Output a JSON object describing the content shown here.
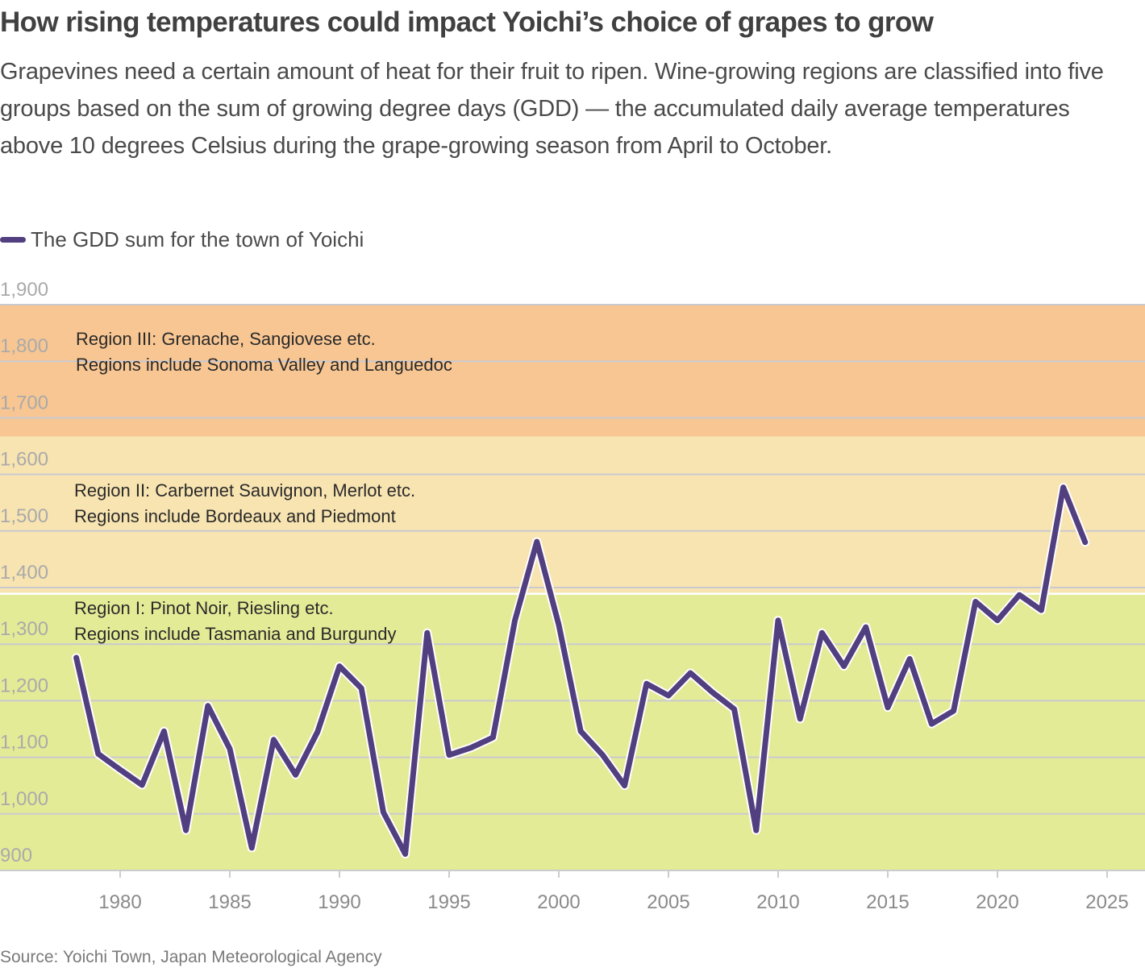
{
  "header": {
    "title": "How rising temperatures could impact Yoichi’s choice of grapes to grow",
    "subtitle": "Grapevines need a certain amount of heat for their fruit to ripen. Wine-growing regions are classified into five groups based on the sum of growing degree days (GDD) — the accumulated daily average temperatures above 10 degrees Celsius during the grape-growing season from April to October."
  },
  "legend": {
    "label": "The GDD sum for the town of Yoichi",
    "color": "#523f80"
  },
  "source": "Source: Yoichi Town, Japan Meteorological Agency",
  "chart_data": {
    "type": "line",
    "title": "How rising temperatures could impact Yoichi’s choice of grapes to grow",
    "xlabel": "",
    "ylabel": "",
    "ylim": [
      900,
      1900
    ],
    "xlim": [
      1975,
      2026
    ],
    "grid": true,
    "legend_position": "top-left",
    "yticks": [
      900,
      1000,
      1100,
      1200,
      1300,
      1400,
      1500,
      1600,
      1700,
      1800,
      1900
    ],
    "ytick_labels": [
      "900",
      "1,000",
      "1,100",
      "1,200",
      "1,300",
      "1,400",
      "1,500",
      "1,600",
      "1,700",
      "1,800",
      "1,900"
    ],
    "xticks": [
      1980,
      1985,
      1990,
      1995,
      2000,
      2005,
      2010,
      2015,
      2020,
      2025
    ],
    "xtick_labels": [
      "1980",
      "1985",
      "1990",
      "1995",
      "2000",
      "2005",
      "2010",
      "2015",
      "2020",
      "2025"
    ],
    "bands": [
      {
        "name": "Region I",
        "from": 900,
        "to": 1389,
        "color": "#e4eb97",
        "line1": "Region I: Pinot Noir, Riesling etc.",
        "line2": "Regions include Tasmania and Burgundy"
      },
      {
        "name": "Region II",
        "from": 1389,
        "to": 1667,
        "color": "#f8e4b1",
        "line1": "Region II: Carbernet Sauvignon, Merlot etc.",
        "line2": "Regions include Bordeaux and Piedmont"
      },
      {
        "name": "Region III",
        "from": 1667,
        "to": 1900,
        "color": "#f8c692",
        "line1": "Region III: Grenache, Sangiovese etc.",
        "line2": "Regions include Sonoma Valley and Languedoc"
      }
    ],
    "series": [
      {
        "name": "The GDD sum for the town of Yoichi",
        "color": "#523f80",
        "x": [
          1978,
          1979,
          1980,
          1981,
          1982,
          1983,
          1984,
          1985,
          1986,
          1987,
          1988,
          1989,
          1990,
          1991,
          1992,
          1993,
          1994,
          1995,
          1996,
          1997,
          1998,
          1999,
          2000,
          2001,
          2002,
          2003,
          2004,
          2005,
          2006,
          2007,
          2008,
          2009,
          2010,
          2011,
          2012,
          2013,
          2014,
          2015,
          2016,
          2017,
          2018,
          2019,
          2020,
          2021,
          2022,
          2023,
          2024
        ],
        "values": [
          1276,
          1106,
          1078,
          1051,
          1146,
          971,
          1191,
          1115,
          940,
          1131,
          1069,
          1145,
          1261,
          1222,
          1003,
          929,
          1320,
          1104,
          1117,
          1135,
          1342,
          1481,
          1334,
          1146,
          1104,
          1050,
          1230,
          1209,
          1249,
          1215,
          1185,
          971,
          1342,
          1168,
          1320,
          1261,
          1330,
          1188,
          1274,
          1159,
          1182,
          1375,
          1342,
          1387,
          1360,
          1577,
          1480
        ]
      }
    ]
  }
}
